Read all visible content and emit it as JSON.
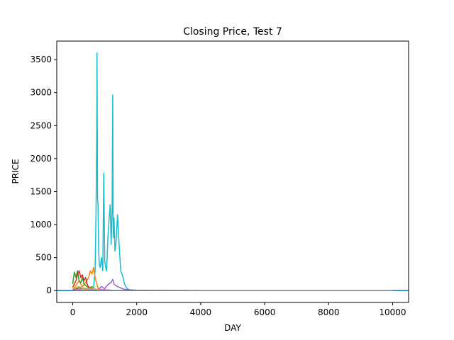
{
  "chart_data": {
    "type": "line",
    "title": "Closing Price, Test 7",
    "xlabel": "DAY",
    "ylabel": "PRICE",
    "xlim": [
      -500,
      10500
    ],
    "ylim": [
      -180,
      3780
    ],
    "xticks": [
      0,
      2000,
      4000,
      6000,
      8000,
      10000
    ],
    "xtick_labels": [
      "0",
      "2000",
      "4000",
      "6000",
      "8000",
      "10000"
    ],
    "yticks": [
      0,
      500,
      1000,
      1500,
      2000,
      2500,
      3000,
      3500
    ],
    "ytick_labels": [
      "0",
      "500",
      "1000",
      "1500",
      "2000",
      "2500",
      "3000",
      "3500"
    ],
    "grid": false,
    "series": [
      {
        "color": "#17becf",
        "x": [
          0,
          550,
          650,
          700,
          730,
          750,
          760,
          775,
          790,
          810,
          830,
          860,
          900,
          940,
          970,
          1000,
          1030,
          1060,
          1100,
          1140,
          1170,
          1200,
          1230,
          1250,
          1265,
          1290,
          1320,
          1350,
          1400,
          1450,
          1500,
          1540,
          1580,
          1620,
          1660,
          1700,
          1800,
          2000,
          2500,
          3000,
          6000,
          10000
        ],
        "y": [
          2,
          5,
          40,
          300,
          1300,
          2500,
          3600,
          1400,
          1300,
          600,
          400,
          350,
          500,
          300,
          1780,
          450,
          350,
          300,
          800,
          1100,
          1300,
          700,
          1200,
          2960,
          800,
          1100,
          600,
          700,
          1150,
          700,
          300,
          250,
          180,
          100,
          60,
          30,
          10,
          3,
          1,
          0,
          0,
          0
        ]
      },
      {
        "color": "#1f77b4",
        "x": [
          -500,
          10500
        ],
        "y": [
          0,
          0
        ]
      },
      {
        "color": "#ff7f0e",
        "x": [
          0,
          100,
          200,
          300,
          400,
          500,
          550,
          600,
          650,
          700,
          750,
          800,
          900
        ],
        "y": [
          20,
          80,
          150,
          60,
          120,
          200,
          300,
          250,
          350,
          200,
          100,
          30,
          5
        ]
      },
      {
        "color": "#2ca02c",
        "x": [
          0,
          50,
          100,
          150,
          200,
          250,
          300,
          350,
          400,
          500,
          600,
          700
        ],
        "y": [
          100,
          280,
          200,
          300,
          150,
          120,
          200,
          100,
          80,
          40,
          60,
          10
        ]
      },
      {
        "color": "#d62728",
        "x": [
          0,
          100,
          150,
          200,
          250,
          300,
          350,
          400,
          450,
          500,
          600
        ],
        "y": [
          50,
          150,
          250,
          300,
          200,
          240,
          150,
          200,
          100,
          50,
          20
        ]
      },
      {
        "color": "#9467bd",
        "x": [
          600,
          800,
          900,
          1000,
          1100,
          1200,
          1250,
          1300,
          1400,
          1500,
          1600,
          1800,
          2000,
          2500,
          4000,
          6000,
          8000,
          10000
        ],
        "y": [
          5,
          20,
          60,
          30,
          90,
          120,
          170,
          90,
          60,
          40,
          20,
          10,
          5,
          2,
          0,
          0,
          0,
          0
        ]
      },
      {
        "color": "#8c564b",
        "x": [
          0,
          200,
          400,
          600,
          800
        ],
        "y": [
          10,
          40,
          30,
          15,
          5
        ]
      },
      {
        "color": "#e377c2",
        "x": [
          0,
          300,
          600,
          900,
          1200
        ],
        "y": [
          5,
          25,
          15,
          20,
          5
        ]
      },
      {
        "color": "#7f7f7f",
        "x": [
          0,
          2000,
          4000,
          6000,
          8000,
          10000
        ],
        "y": [
          3,
          1,
          0,
          0,
          0,
          0
        ]
      },
      {
        "color": "#bcbd22",
        "x": [
          0,
          200,
          400,
          600,
          800
        ],
        "y": [
          30,
          60,
          20,
          40,
          10
        ]
      }
    ]
  }
}
